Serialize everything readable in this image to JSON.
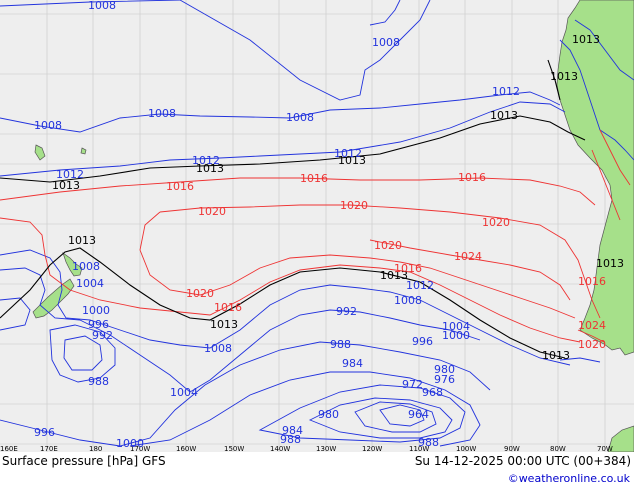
{
  "map": {
    "title": "Surface pressure [hPa] GFS",
    "valid_time": "Su 14-12-2025 00:00 UTC (00+384)",
    "credit": "©weatheronline.co.uk",
    "colors": {
      "ocean": "#eeeeee",
      "land": "#a6e08a",
      "low_isobar": "#2233dd",
      "high_isobar": "#ee3333",
      "standard_isobar": "#000000",
      "grid": "#c8c8c8"
    },
    "longitude_ticks": [
      "160E",
      "170E",
      "180",
      "170W",
      "160W",
      "150W",
      "140W",
      "130W",
      "120W",
      "110W",
      "100W",
      "90W",
      "80W",
      "70W"
    ],
    "isobar_labels": {
      "l1008a": "1008",
      "l1008b": "1008",
      "l1008c": "1008",
      "l1008d": "1008",
      "l1008e": "1008",
      "l1008f": "1008",
      "l1008g": "1008",
      "l1008h": "1008",
      "l1012a": "1012",
      "l1012b": "1012",
      "l1012c": "1012",
      "l1012d": "1012",
      "l1012e": "1012",
      "l1013a": "1013",
      "l1013b": "1013",
      "l1013c": "1013",
      "l1013d": "1013",
      "l1013e": "1013",
      "l1013f": "1013",
      "l1013g": "1013",
      "l1013h": "1013",
      "l1013i": "1013",
      "l1013j": "1013",
      "l1013k": "1013",
      "l1016a": "1016",
      "l1016b": "1016",
      "l1016c": "1016",
      "l1016d": "1016",
      "l1016e": "1016",
      "l1016f": "1016",
      "l1020a": "1020",
      "l1020b": "1020",
      "l1020c": "1020",
      "l1020d": "1020",
      "l1020e": "1020",
      "l1020f": "1020",
      "l1024a": "1024",
      "l1024b": "1024",
      "l1004a": "1004",
      "l1004b": "1004",
      "l1004c": "1004",
      "l1000a": "1000",
      "l1000b": "1000",
      "l1000c": "1000",
      "l996a": "996",
      "l996b": "996",
      "l996c": "996",
      "l992a": "992",
      "l992b": "992",
      "l988a": "988",
      "l988b": "988",
      "l988c": "988",
      "l988d": "988",
      "l984a": "984",
      "l984b": "984",
      "l980a": "980",
      "l980b": "980",
      "l976a": "976",
      "l972a": "972",
      "l968a": "968",
      "l964a": "964"
    }
  }
}
